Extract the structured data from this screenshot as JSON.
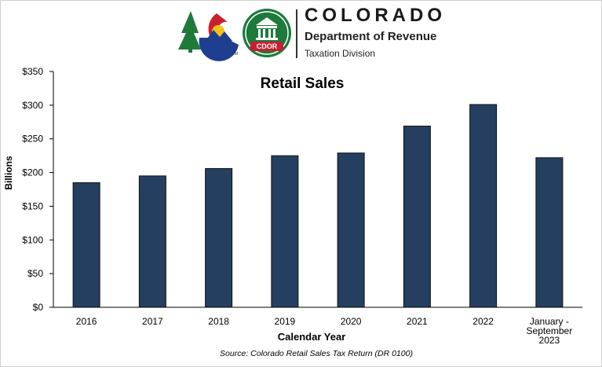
{
  "header": {
    "org_name": "COLORADO",
    "department": "Department of Revenue",
    "division": "Taxation Division",
    "seal_text": "CDOR",
    "trademark": "TM"
  },
  "colors": {
    "bar": "#243f60",
    "bar_edge": "#111111",
    "logo_red": "#c8202f",
    "logo_blue": "#1e3f8f",
    "logo_yellow": "#f3c316",
    "logo_green": "#1f7a3a",
    "seal_green": "#1c7a3b"
  },
  "chart_data": {
    "type": "bar",
    "title": "Retail Sales",
    "xlabel": "Calendar Year",
    "ylabel": "Billions",
    "source": "Source: Colorado Retail Sales Tax Return (DR 0100)",
    "categories": [
      [
        "2016"
      ],
      [
        "2017"
      ],
      [
        "2018"
      ],
      [
        "2019"
      ],
      [
        "2020"
      ],
      [
        "2021"
      ],
      [
        "2022"
      ],
      [
        "January -",
        "September",
        "2023"
      ]
    ],
    "values": [
      185,
      195,
      206,
      225,
      229,
      269,
      301,
      222
    ],
    "ylim": [
      0,
      350
    ],
    "yticks": [
      "$0",
      "$50",
      "$100",
      "$150",
      "$200",
      "$250",
      "$300",
      "$350"
    ],
    "grid": false,
    "legend": "none"
  }
}
